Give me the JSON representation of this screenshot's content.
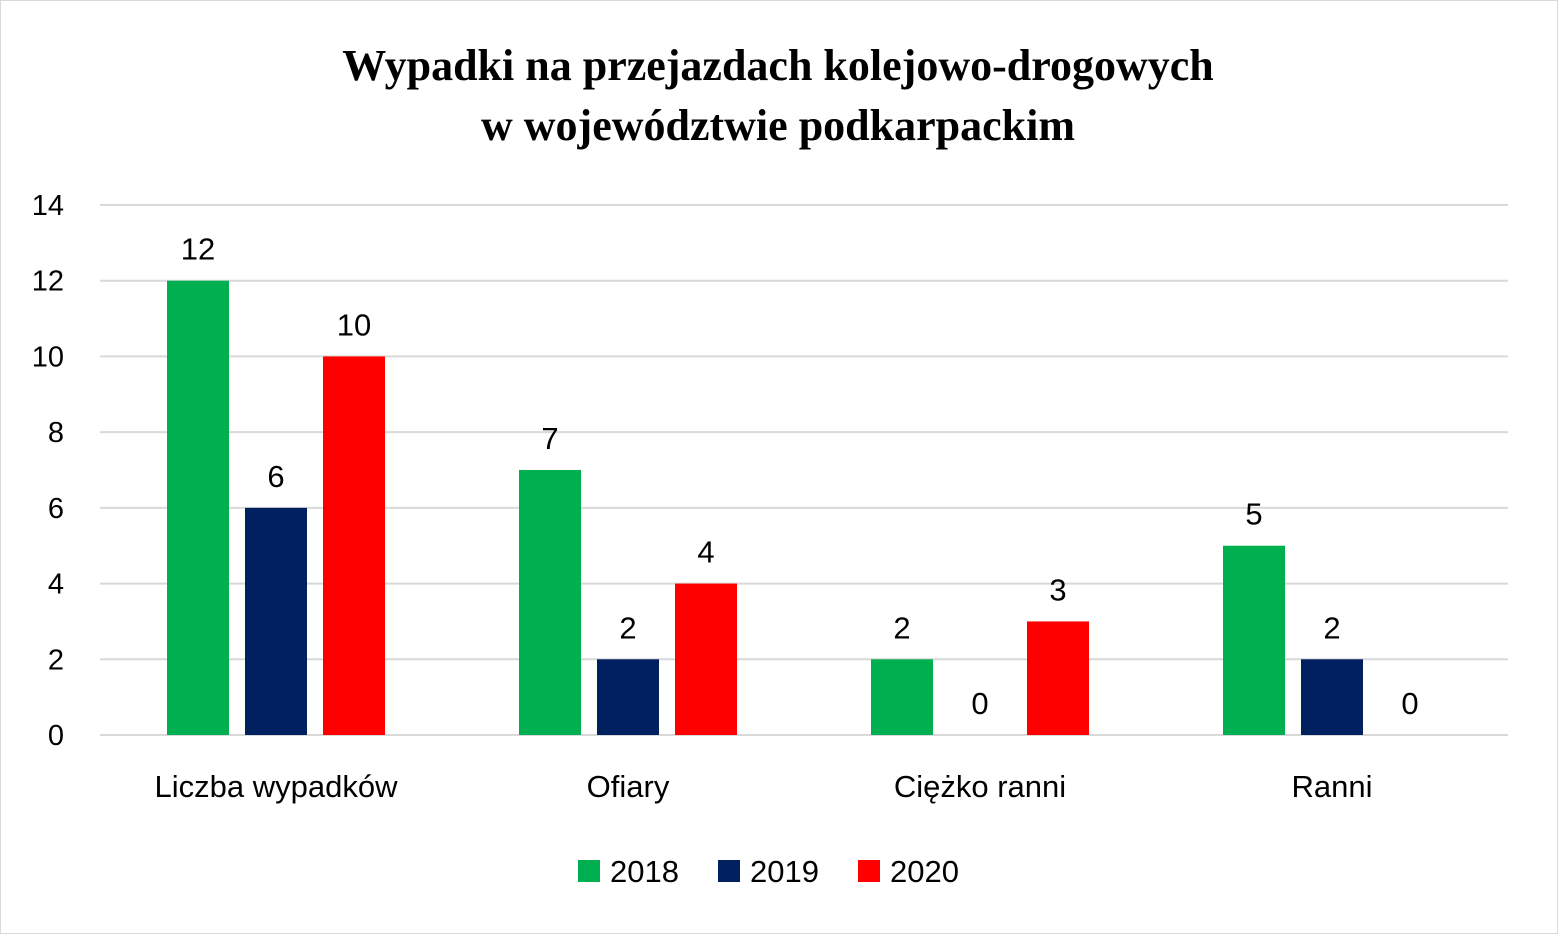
{
  "chart_data": {
    "type": "bar",
    "title": [
      "Wypadki na przejazdach kolejowo-drogowych",
      "w województwie podkarpackim"
    ],
    "categories": [
      "Liczba wypadków",
      "Ofiary",
      "Ciężko ranni",
      "Ranni"
    ],
    "series": [
      {
        "name": "2018",
        "color": "#00b050",
        "values": [
          12,
          7,
          2,
          5
        ]
      },
      {
        "name": "2019",
        "color": "#002060",
        "values": [
          6,
          2,
          0,
          2
        ]
      },
      {
        "name": "2020",
        "color": "#ff0000",
        "values": [
          10,
          4,
          3,
          0
        ]
      }
    ],
    "ylim": [
      0,
      14
    ],
    "yticks": [
      0,
      2,
      4,
      6,
      8,
      10,
      12,
      14
    ],
    "grid": true,
    "gridColor": "#d9d9d9",
    "legendPlacement": "bottom",
    "dataLabels": true
  }
}
